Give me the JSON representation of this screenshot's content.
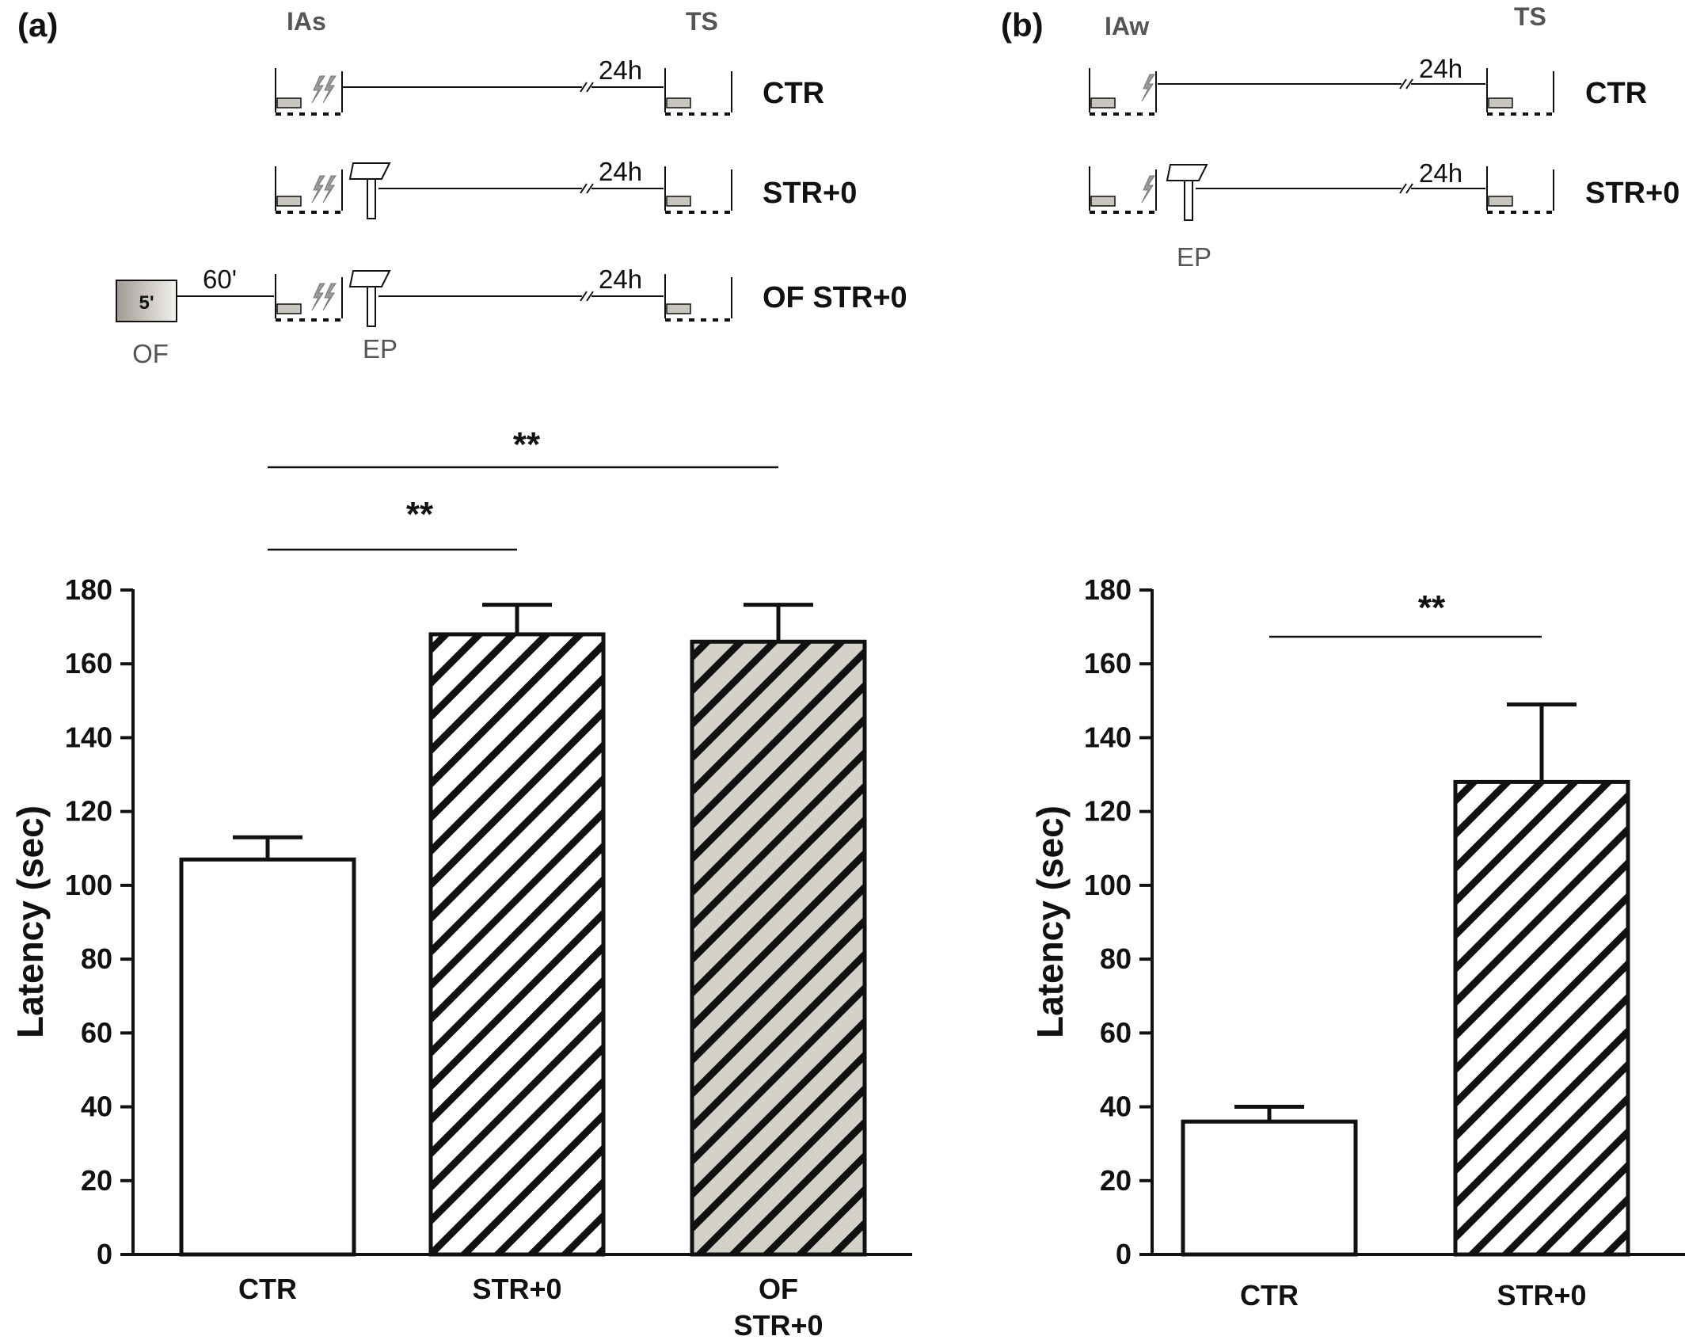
{
  "panels": {
    "a": {
      "label": "(a)",
      "stage_left": "IAs",
      "stage_right": "TS",
      "delay": "24h",
      "of_interval": "60'",
      "of_box": "5'",
      "of_label": "OF",
      "ep_label": "EP",
      "conditions": [
        "CTR",
        "STR+0",
        "OF STR+0"
      ]
    },
    "b": {
      "label": "(b)",
      "stage_left": "IAw",
      "stage_right": "TS",
      "delay": "24h",
      "ep_label": "EP",
      "conditions": [
        "CTR",
        "STR+0"
      ]
    }
  },
  "colors": {
    "axis": "#111111",
    "shock_gray": "#9a9a9a",
    "platform_gray": "#c8c6be",
    "of_bar_fill": "#d4d2c8",
    "of_box_gradient_start": "#a29b94",
    "of_box_gradient_end": "#f2f1ee"
  },
  "chart_data": [
    {
      "type": "bar",
      "panel": "a",
      "ylabel": "Latency (sec)",
      "ylim": [
        0,
        180
      ],
      "yticks": [
        "0",
        "20",
        "40",
        "60",
        "80",
        "100",
        "120",
        "140",
        "160",
        "180"
      ],
      "categories": [
        [
          "CTR"
        ],
        [
          "STR+0"
        ],
        [
          "OF",
          "STR+0"
        ]
      ],
      "values": [
        107,
        168,
        166
      ],
      "errors": [
        6,
        8,
        10
      ],
      "patterns": [
        "none",
        "hatch",
        "hatch-gray"
      ],
      "significance": [
        {
          "from": 0,
          "to": 1,
          "label": "**"
        },
        {
          "from": 0,
          "to": 2,
          "label": "**"
        }
      ]
    },
    {
      "type": "bar",
      "panel": "b",
      "ylabel": "Latency (sec)",
      "ylim": [
        0,
        180
      ],
      "yticks": [
        "0",
        "20",
        "40",
        "60",
        "80",
        "100",
        "120",
        "140",
        "160",
        "180"
      ],
      "categories": [
        [
          "CTR"
        ],
        [
          "STR+0"
        ]
      ],
      "values": [
        36,
        128
      ],
      "errors": [
        4,
        21
      ],
      "patterns": [
        "none",
        "hatch"
      ],
      "significance": [
        {
          "from": 0,
          "to": 1,
          "label": "**"
        }
      ]
    }
  ]
}
